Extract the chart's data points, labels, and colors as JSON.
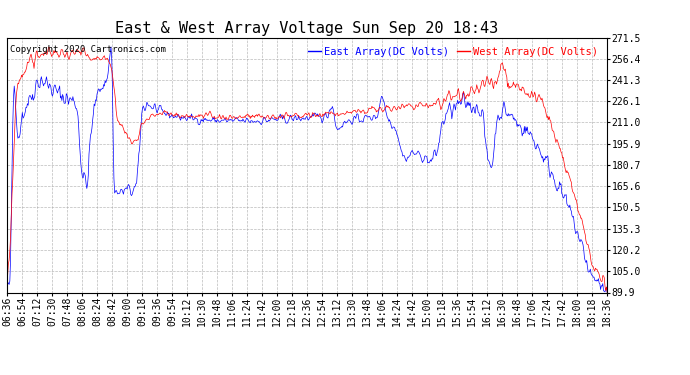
{
  "title": "East & West Array Voltage Sun Sep 20 18:43",
  "copyright": "Copyright 2020 Cartronics.com",
  "legend_east": "East Array(DC Volts)",
  "legend_west": "West Array(DC Volts)",
  "east_color": "blue",
  "west_color": "red",
  "background_color": "white",
  "grid_color": "#aaaaaa",
  "yticks": [
    89.9,
    105.0,
    120.2,
    135.3,
    150.5,
    165.6,
    180.7,
    195.9,
    211.0,
    226.1,
    241.3,
    256.4,
    271.5
  ],
  "xtick_labels": [
    "06:36",
    "06:54",
    "07:12",
    "07:30",
    "07:48",
    "08:06",
    "08:24",
    "08:42",
    "09:00",
    "09:18",
    "09:36",
    "09:54",
    "10:12",
    "10:30",
    "10:48",
    "11:06",
    "11:24",
    "11:42",
    "12:00",
    "12:18",
    "12:36",
    "12:54",
    "13:12",
    "13:30",
    "13:48",
    "14:06",
    "14:24",
    "14:42",
    "15:00",
    "15:18",
    "15:36",
    "15:54",
    "16:12",
    "16:30",
    "16:48",
    "17:06",
    "17:24",
    "17:42",
    "18:00",
    "18:18",
    "18:36"
  ],
  "ymin": 89.9,
  "ymax": 271.5,
  "title_fontsize": 11,
  "tick_fontsize": 7,
  "legend_fontsize": 7.5,
  "copyright_fontsize": 6.5
}
